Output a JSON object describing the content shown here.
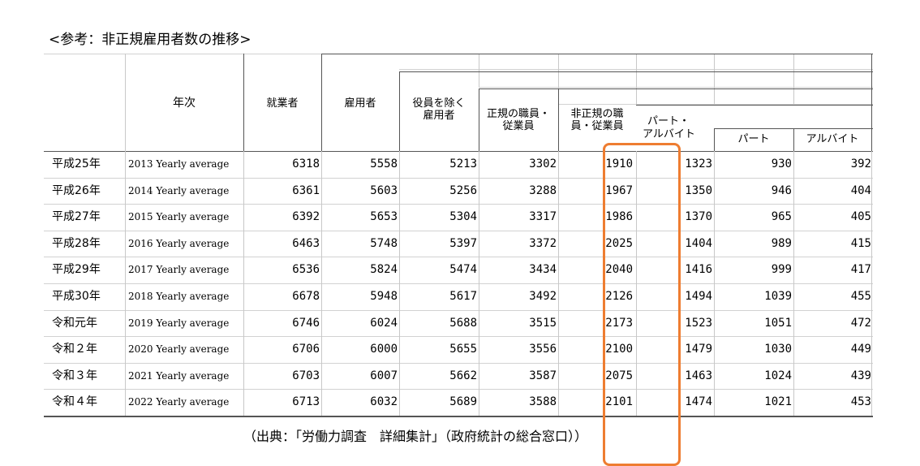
{
  "title": "<参考：非正規雇用者数の推移>",
  "source": "（出典：「労働力調査　詳細集計」（政府統計の総合窓口））",
  "highlight_color": "#ee7d31",
  "headers": {
    "year": "年次",
    "employed": "就業者",
    "employees": "雇用者",
    "excl_officers": [
      "役員を除く",
      "雇用者"
    ],
    "regular": [
      "正規の職員・",
      "従業員"
    ],
    "non_regular": [
      "非正規の職",
      "員・従業員"
    ],
    "part_arbeit": [
      "パート・",
      "アルバイト"
    ],
    "part": "パート",
    "arbeit": "アルバイト"
  },
  "rows": [
    {
      "era": "平成25年",
      "year": "2013 Yearly average",
      "employed": "6318",
      "employees": "5558",
      "excl_officers": "5213",
      "regular": "3302",
      "non_regular": "1910",
      "part_arbeit": "1323",
      "part": "930",
      "arbeit": "392"
    },
    {
      "era": "平成26年",
      "year": "2014 Yearly average",
      "employed": "6361",
      "employees": "5603",
      "excl_officers": "5256",
      "regular": "3288",
      "non_regular": "1967",
      "part_arbeit": "1350",
      "part": "946",
      "arbeit": "404"
    },
    {
      "era": "平成27年",
      "year": "2015 Yearly average",
      "employed": "6392",
      "employees": "5653",
      "excl_officers": "5304",
      "regular": "3317",
      "non_regular": "1986",
      "part_arbeit": "1370",
      "part": "965",
      "arbeit": "405"
    },
    {
      "era": "平成28年",
      "year": "2016 Yearly average",
      "employed": "6463",
      "employees": "5748",
      "excl_officers": "5397",
      "regular": "3372",
      "non_regular": "2025",
      "part_arbeit": "1404",
      "part": "989",
      "arbeit": "415"
    },
    {
      "era": "平成29年",
      "year": "2017 Yearly average",
      "employed": "6536",
      "employees": "5824",
      "excl_officers": "5474",
      "regular": "3434",
      "non_regular": "2040",
      "part_arbeit": "1416",
      "part": "999",
      "arbeit": "417"
    },
    {
      "era": "平成30年",
      "year": "2018 Yearly average",
      "employed": "6678",
      "employees": "5948",
      "excl_officers": "5617",
      "regular": "3492",
      "non_regular": "2126",
      "part_arbeit": "1494",
      "part": "1039",
      "arbeit": "455"
    },
    {
      "era": "令和元年",
      "year": "2019 Yearly average",
      "employed": "6746",
      "employees": "6024",
      "excl_officers": "5688",
      "regular": "3515",
      "non_regular": "2173",
      "part_arbeit": "1523",
      "part": "1051",
      "arbeit": "472"
    },
    {
      "era": "令和２年",
      "year": "2020 Yearly average",
      "employed": "6706",
      "employees": "6000",
      "excl_officers": "5655",
      "regular": "3556",
      "non_regular": "2100",
      "part_arbeit": "1479",
      "part": "1030",
      "arbeit": "449"
    },
    {
      "era": "令和３年",
      "year": "2021 Yearly average",
      "employed": "6703",
      "employees": "6007",
      "excl_officers": "5662",
      "regular": "3587",
      "non_regular": "2075",
      "part_arbeit": "1463",
      "part": "1024",
      "arbeit": "439"
    },
    {
      "era": "令和４年",
      "year": "2022 Yearly average",
      "employed": "6713",
      "employees": "6032",
      "excl_officers": "5689",
      "regular": "3588",
      "non_regular": "2101",
      "part_arbeit": "1474",
      "part": "1021",
      "arbeit": "453"
    }
  ]
}
